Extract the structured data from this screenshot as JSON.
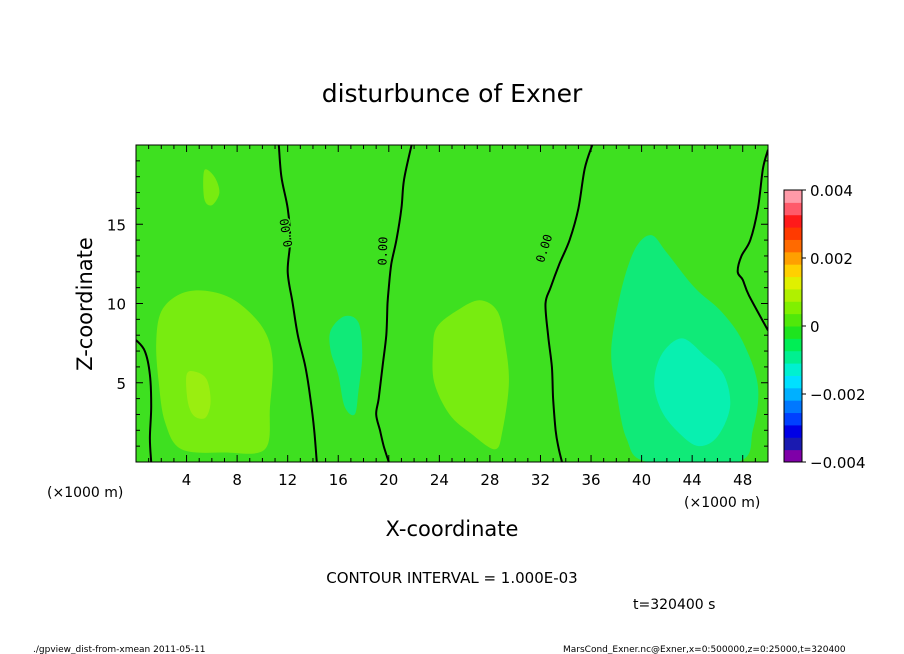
{
  "chart_data": {
    "type": "heatmap",
    "title": "disturbunce of Exner",
    "xlabel": "X-coordinate",
    "ylabel": "Z-coordinate",
    "x_unit": "(×1000 m)",
    "x_unit_right": "(×1000 m)",
    "xlim": [
      0,
      50
    ],
    "ylim": [
      0,
      20
    ],
    "x_ticks": [
      "4",
      "8",
      "12",
      "16",
      "20",
      "24",
      "28",
      "32",
      "36",
      "40",
      "44",
      "48"
    ],
    "y_ticks": [
      "5",
      "10",
      "15"
    ],
    "colorbar": {
      "range": [
        -0.004,
        0.004
      ],
      "tick_labels": [
        "0.004",
        "0.002",
        "0",
        "−0.002",
        "−0.004"
      ],
      "colors": [
        "#7f00a8",
        "#1a1ab0",
        "#0000e6",
        "#0040ff",
        "#0078ff",
        "#00b0ff",
        "#00e0ff",
        "#00f0d0",
        "#00f090",
        "#00ee55",
        "#1ee41e",
        "#50e80a",
        "#80f000",
        "#b0f000",
        "#e0f000",
        "#ffd000",
        "#ffa000",
        "#ff6a00",
        "#ff3a00",
        "#ff1a1a",
        "#ff5a6a",
        "#ff9aa8"
      ]
    },
    "field_colors": {
      "background": "#3ee020",
      "yellow_green": "#78ec10",
      "brighter": "#9aee10",
      "cyan_green": "#10ea78",
      "cyan": "#08f0b0"
    },
    "contours": [
      {
        "label": "0.00",
        "level": 0,
        "points": [
          [
            11.3,
            20
          ],
          [
            11.5,
            18
          ],
          [
            12.0,
            16
          ],
          [
            12.2,
            14
          ],
          [
            12.0,
            12
          ],
          [
            12.4,
            10
          ],
          [
            12.8,
            8
          ],
          [
            13.4,
            6
          ],
          [
            13.8,
            4
          ],
          [
            14.1,
            2
          ],
          [
            14.3,
            0
          ]
        ]
      },
      {
        "label": "0.00",
        "level": 0,
        "points": [
          [
            21.8,
            20
          ],
          [
            21.2,
            17.8
          ],
          [
            21.0,
            16
          ],
          [
            20.6,
            14
          ],
          [
            20.2,
            12.5
          ],
          [
            20.0,
            11
          ],
          [
            19.9,
            10
          ],
          [
            19.8,
            8
          ],
          [
            19.5,
            6
          ],
          [
            19.2,
            4
          ],
          [
            19.0,
            3
          ],
          [
            19.3,
            2
          ],
          [
            19.6,
            1
          ],
          [
            20.0,
            0
          ]
        ]
      },
      {
        "label": "0.00",
        "level": 0,
        "points": [
          [
            36.1,
            20
          ],
          [
            35.5,
            18.5
          ],
          [
            35.0,
            16
          ],
          [
            34.3,
            14
          ],
          [
            33.5,
            12.5
          ],
          [
            32.8,
            11
          ],
          [
            32.4,
            10
          ],
          [
            32.6,
            8
          ],
          [
            32.9,
            6
          ],
          [
            33.0,
            4
          ],
          [
            33.2,
            2
          ],
          [
            33.4,
            1
          ],
          [
            33.7,
            0
          ]
        ]
      },
      {
        "label": "",
        "level": 0,
        "points": [
          [
            50,
            19.7
          ],
          [
            49.6,
            18.5
          ],
          [
            49.2,
            16
          ],
          [
            48.6,
            14
          ],
          [
            47.9,
            13
          ],
          [
            47.6,
            12
          ],
          [
            48.0,
            11.5
          ],
          [
            48.5,
            10.5
          ],
          [
            50,
            8.3
          ]
        ]
      },
      {
        "label": "",
        "level": 0,
        "points": [
          [
            0,
            7.7
          ],
          [
            0.7,
            7
          ],
          [
            1.1,
            5.5
          ],
          [
            1.2,
            3.5
          ],
          [
            1.1,
            1.5
          ],
          [
            1.2,
            0
          ]
        ]
      }
    ]
  },
  "footer": {
    "contour_interval": "CONTOUR INTERVAL = 1.000E-03",
    "time": "t=320400  s",
    "left_note": "./gpview_dist-from-xmean  2011-05-11",
    "right_note": "MarsCond_Exner.nc@Exner,x=0:500000,z=0:25000,t=320400"
  }
}
